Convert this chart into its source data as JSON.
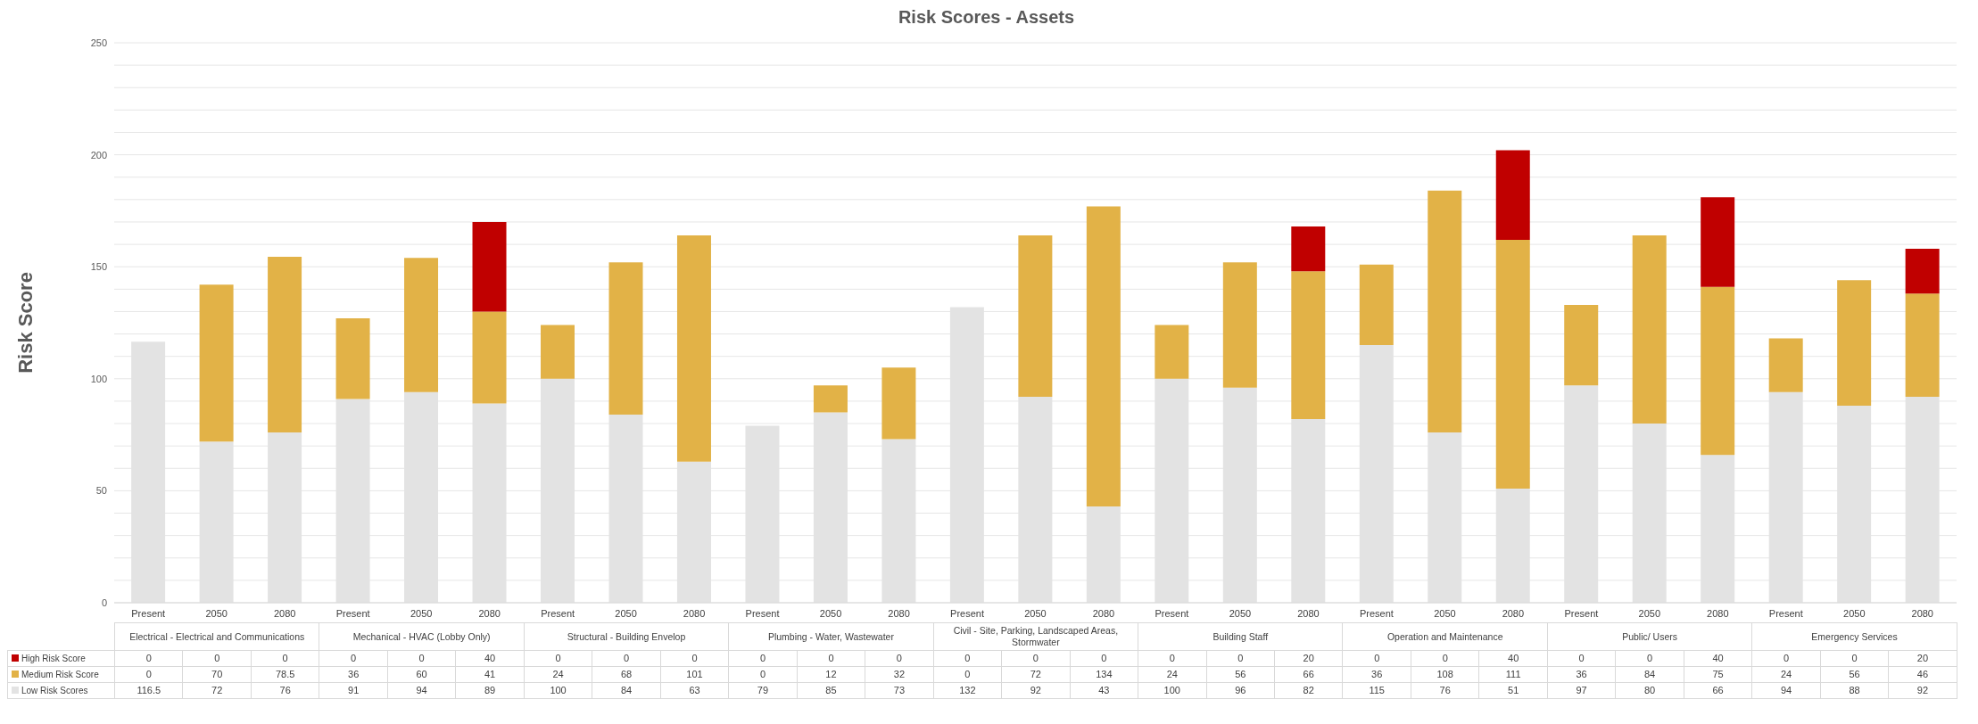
{
  "chart_data": {
    "type": "bar",
    "title": "Risk Scores - Assets",
    "ylabel": "Risk Score",
    "categories": [
      "Present",
      "2050",
      "2080",
      "Present",
      "2050",
      "2080",
      "Present",
      "2050",
      "2080",
      "Present",
      "2050",
      "2080",
      "Present",
      "2050",
      "2080",
      "Present",
      "2050",
      "2080",
      "Present",
      "2050",
      "2080",
      "Present",
      "2050",
      "2080",
      "Present",
      "2050",
      "2080"
    ],
    "annotations": [
      "Electrical - Electrical and Communications",
      "Mechanical - HVAC (Lobby Only)",
      "Structural - Building Envelop",
      "Plumbing - Water, Wastewater",
      "Civil - Site, Parking, Landscaped Areas, Stormwater",
      "Building Staff",
      "Operation and Maintenance",
      "Public/ Users",
      "Emergency Services"
    ],
    "stacked": true,
    "series": [
      {
        "name": "Low Risk Scores",
        "color": "#e3e3e3",
        "values": [
          116.5,
          72,
          76,
          91,
          94,
          89,
          100,
          84,
          63,
          79,
          85,
          73,
          132,
          92,
          43,
          100,
          96,
          82,
          115,
          76,
          51,
          97,
          80,
          66,
          94,
          88,
          92
        ]
      },
      {
        "name": "Medium Risk Score",
        "color": "#e2b247",
        "values": [
          0,
          70,
          78.5,
          36,
          60,
          41,
          24,
          68,
          101,
          0,
          12,
          32,
          0,
          72,
          134,
          24,
          56,
          66,
          36,
          108,
          111,
          36,
          84,
          75,
          24,
          56,
          46
        ]
      },
      {
        "name": "High Risk Score",
        "color": "#c00000",
        "values": [
          0,
          0,
          0,
          0,
          0,
          40,
          0,
          0,
          0,
          0,
          0,
          0,
          0,
          0,
          0,
          0,
          0,
          20,
          0,
          0,
          40,
          0,
          0,
          40,
          0,
          0,
          20
        ]
      }
    ],
    "ylim": [
      0,
      250
    ],
    "yticks": [
      0,
      {
        "value": 10,
        "label": null
      },
      {
        "value": 20,
        "label": null
      },
      {
        "value": 30,
        "label": null
      },
      {
        "value": 40,
        "label": null
      },
      50,
      {
        "value": 60,
        "label": null
      },
      {
        "value": 70,
        "label": null
      },
      {
        "value": 80,
        "label": null
      },
      {
        "value": 90,
        "label": null
      },
      100,
      {
        "value": 110,
        "label": null
      },
      {
        "value": 120,
        "label": null
      },
      {
        "value": 130,
        "label": null
      },
      {
        "value": 140,
        "label": null
      },
      150,
      {
        "value": 160,
        "label": null
      },
      {
        "value": 170,
        "label": null
      },
      {
        "value": 180,
        "label": null
      },
      {
        "value": 190,
        "label": null
      },
      200,
      {
        "value": 210,
        "label": null
      },
      {
        "value": 220,
        "label": null
      },
      {
        "value": 230,
        "label": null
      },
      {
        "value": 240,
        "label": null
      },
      250
    ],
    "grid": "y",
    "legend": "bottom",
    "data_labels": true
  }
}
